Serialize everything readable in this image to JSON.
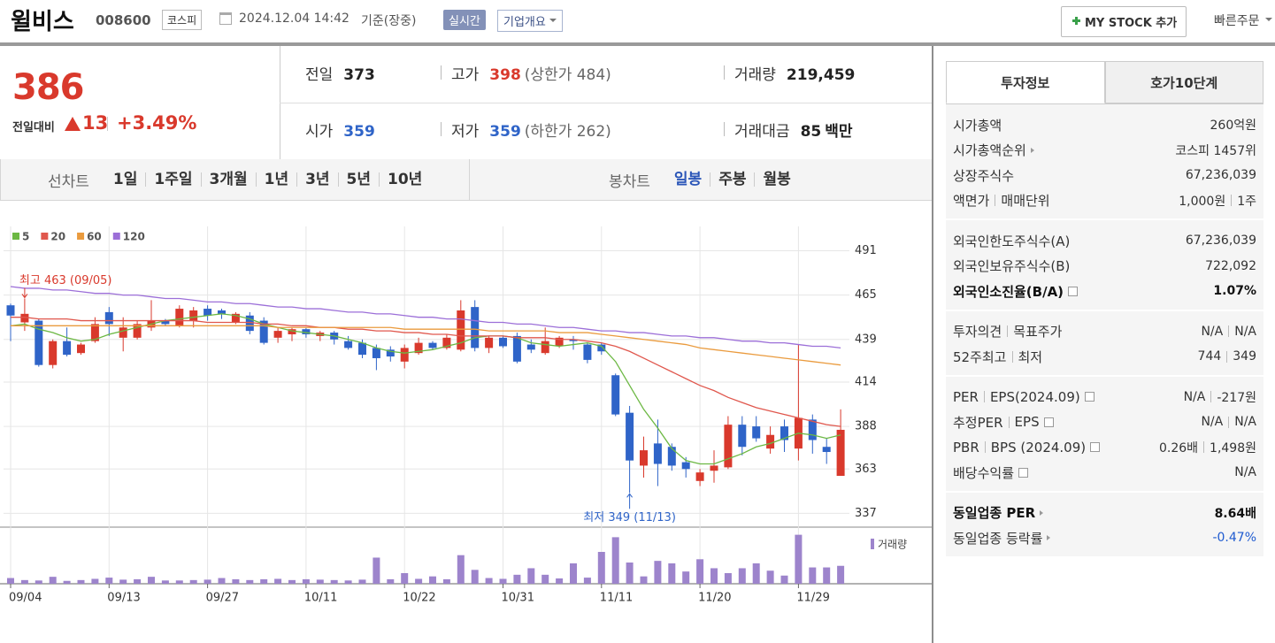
{
  "header": {
    "name": "윌비스",
    "code": "008600",
    "market": "코스피",
    "datetime": "2024.12.04 14:42",
    "basis": "기준(장중)",
    "realtime": "실시간",
    "company_info": "기업개요",
    "my_stock": "MY STOCK 추가",
    "quick_order": "빠른주문"
  },
  "quote": {
    "price": "386",
    "change_label": "전일대비",
    "change": "13",
    "change_rate": "+3.49%",
    "items": [
      {
        "label": "전일",
        "value": "373",
        "color": "#222222"
      },
      {
        "label": "고가",
        "value": "398",
        "note": "(상한가 484)",
        "color": "#d9392c"
      },
      {
        "label": "거래량",
        "value": "219,459",
        "color": "#222222"
      },
      {
        "label": "시가",
        "value": "359",
        "color": "#2f64c8"
      },
      {
        "label": "저가",
        "value": "359",
        "note": "(하한가 262)",
        "color": "#2f64c8"
      },
      {
        "label": "거래대금",
        "value": "85",
        "unit": "백만",
        "color": "#222222"
      }
    ]
  },
  "chart_tabs": {
    "line_label": "선차트",
    "line_periods": [
      "1일",
      "1주일",
      "3개월",
      "1년",
      "3년",
      "5년",
      "10년"
    ],
    "candle_label": "봉차트",
    "candle_periods": [
      "일봉",
      "주봉",
      "월봉"
    ],
    "active_candle": 0
  },
  "chart_data": {
    "type": "candlestick",
    "categories": [
      "09/04",
      null,
      null,
      null,
      null,
      null,
      null,
      "09/13",
      null,
      null,
      null,
      null,
      null,
      null,
      "09/27",
      null,
      null,
      null,
      null,
      null,
      null,
      "10/11",
      null,
      null,
      null,
      null,
      null,
      null,
      "10/22",
      null,
      null,
      null,
      null,
      null,
      null,
      "10/31",
      null,
      null,
      null,
      null,
      null,
      null,
      "11/11",
      null,
      null,
      null,
      null,
      null,
      null,
      "11/20",
      null,
      null,
      null,
      null,
      null,
      null,
      "11/29",
      null,
      null,
      null
    ],
    "ohlc": [
      [
        459,
        460,
        438,
        453
      ],
      [
        449,
        463,
        444,
        454
      ],
      [
        450,
        451,
        423,
        424
      ],
      [
        424,
        439,
        422,
        438
      ],
      [
        438,
        446,
        429,
        430
      ],
      [
        431,
        437,
        430,
        436
      ],
      [
        438,
        452,
        437,
        448
      ],
      [
        455,
        458,
        441,
        448
      ],
      [
        440,
        452,
        432,
        446
      ],
      [
        440,
        450,
        439,
        448
      ],
      [
        446,
        462,
        444,
        450
      ],
      [
        450,
        451,
        447,
        448
      ],
      [
        447,
        459,
        446,
        457
      ],
      [
        450,
        458,
        446,
        456
      ],
      [
        457,
        459,
        450,
        453
      ],
      [
        456,
        457,
        451,
        454
      ],
      [
        449,
        455,
        448,
        454
      ],
      [
        453,
        455,
        442,
        444
      ],
      [
        450,
        452,
        436,
        437
      ],
      [
        440,
        446,
        437,
        444
      ],
      [
        442,
        446,
        438,
        445
      ],
      [
        445,
        446,
        440,
        442
      ],
      [
        441,
        444,
        438,
        443
      ],
      [
        443,
        444,
        436,
        439
      ],
      [
        438,
        441,
        433,
        434
      ],
      [
        437,
        439,
        428,
        430
      ],
      [
        434,
        436,
        421,
        428
      ],
      [
        433,
        435,
        426,
        429
      ],
      [
        426,
        436,
        422,
        434
      ],
      [
        431,
        440,
        430,
        437
      ],
      [
        437,
        438,
        433,
        434
      ],
      [
        434,
        442,
        433,
        440
      ],
      [
        433,
        462,
        432,
        456
      ],
      [
        458,
        462,
        432,
        434
      ],
      [
        434,
        441,
        431,
        440
      ],
      [
        440,
        441,
        434,
        435
      ],
      [
        441,
        443,
        425,
        426
      ],
      [
        436,
        439,
        431,
        433
      ],
      [
        431,
        446,
        430,
        438
      ],
      [
        435,
        441,
        434,
        440
      ],
      [
        439,
        441,
        433,
        438
      ],
      [
        436,
        437,
        425,
        427
      ],
      [
        436,
        437,
        430,
        432
      ],
      [
        418,
        419,
        394,
        395
      ],
      [
        396,
        400,
        349,
        368
      ],
      [
        365,
        382,
        358,
        374
      ],
      [
        378,
        392,
        353,
        366
      ],
      [
        376,
        378,
        362,
        365
      ],
      [
        367,
        370,
        358,
        363
      ],
      [
        356,
        363,
        353,
        361
      ],
      [
        362,
        374,
        355,
        365
      ],
      [
        364,
        394,
        363,
        389
      ],
      [
        389,
        394,
        371,
        376
      ],
      [
        388,
        394,
        379,
        381
      ],
      [
        375,
        388,
        372,
        383
      ],
      [
        388,
        392,
        373,
        380
      ],
      [
        375,
        436,
        368,
        393
      ],
      [
        392,
        395,
        372,
        380
      ],
      [
        376,
        381,
        366,
        373
      ],
      [
        359,
        398,
        359,
        386
      ]
    ],
    "up_color": "#d9392c",
    "down_color": "#2f64c8",
    "ylim": [
      331,
      498
    ],
    "yticks": [
      337,
      363,
      388,
      414,
      439,
      465,
      491
    ],
    "grid": true,
    "series": [
      {
        "name": "5",
        "color": "#6cb843",
        "values": [
          447,
          448,
          445,
          443,
          440,
          438,
          439,
          442,
          444,
          446,
          448,
          450,
          451,
          452,
          453,
          454,
          453,
          451,
          448,
          446,
          444,
          443,
          442,
          441,
          439,
          437,
          434,
          432,
          431,
          432,
          433,
          435,
          437,
          440,
          441,
          441,
          440,
          437,
          436,
          435,
          436,
          437,
          435,
          426,
          412,
          398,
          387,
          375,
          368,
          366,
          366,
          369,
          372,
          376,
          378,
          381,
          384,
          383,
          381,
          383
        ]
      },
      {
        "name": "20",
        "color": "#e0574d",
        "values": [
          452,
          452,
          451,
          451,
          451,
          450,
          450,
          450,
          450,
          450,
          450,
          450,
          450,
          450,
          449,
          449,
          449,
          449,
          448,
          448,
          447,
          447,
          446,
          446,
          445,
          445,
          444,
          444,
          443,
          443,
          442,
          442,
          441,
          441,
          441,
          441,
          440,
          440,
          440,
          439,
          439,
          438,
          437,
          435,
          432,
          428,
          424,
          420,
          416,
          412,
          409,
          405,
          402,
          399,
          397,
          395,
          393,
          391,
          389,
          388
        ]
      },
      {
        "name": "60",
        "color": "#ea9b3e",
        "values": [
          447,
          447,
          447,
          447,
          447,
          447,
          447,
          447,
          447,
          447,
          447,
          447,
          447,
          447,
          447,
          447,
          447,
          447,
          447,
          446,
          446,
          446,
          446,
          446,
          446,
          446,
          446,
          446,
          445,
          445,
          445,
          445,
          445,
          445,
          444,
          444,
          444,
          444,
          444,
          443,
          443,
          443,
          442,
          441,
          440,
          439,
          438,
          437,
          436,
          434,
          433,
          432,
          431,
          430,
          429,
          428,
          427,
          426,
          425,
          424
        ]
      },
      {
        "name": "120",
        "color": "#9c6fd8",
        "values": [
          470,
          469,
          469,
          468,
          468,
          467,
          466,
          466,
          465,
          465,
          464,
          463,
          463,
          462,
          461,
          461,
          460,
          460,
          459,
          458,
          458,
          457,
          457,
          456,
          455,
          455,
          454,
          454,
          453,
          452,
          452,
          451,
          451,
          450,
          449,
          449,
          448,
          448,
          447,
          446,
          446,
          445,
          444,
          444,
          443,
          443,
          442,
          441,
          441,
          440,
          440,
          439,
          438,
          438,
          437,
          437,
          436,
          435,
          435,
          434
        ]
      }
    ],
    "high_label": "최고 463 (09/05)",
    "low_label": "최저 349 (11/13)",
    "volume": {
      "name": "거래량",
      "color": "#9d84cc",
      "ylim": [
        0,
        650000
      ],
      "values": [
        70000,
        45000,
        40000,
        85000,
        35000,
        45000,
        60000,
        75000,
        50000,
        55000,
        85000,
        40000,
        40000,
        45000,
        50000,
        70000,
        55000,
        45000,
        55000,
        60000,
        45000,
        55000,
        50000,
        45000,
        40000,
        50000,
        320000,
        55000,
        130000,
        60000,
        90000,
        55000,
        350000,
        170000,
        70000,
        60000,
        110000,
        190000,
        110000,
        65000,
        250000,
        75000,
        390000,
        570000,
        260000,
        90000,
        280000,
        250000,
        150000,
        300000,
        190000,
        130000,
        190000,
        250000,
        160000,
        100000,
        600000,
        200000,
        200000,
        219459
      ]
    }
  },
  "info_panel": {
    "tabs": [
      "투자정보",
      "호가10단계"
    ],
    "active_tab": 0,
    "sections": [
      {
        "rows": [
          {
            "label": [
              "시가총액"
            ],
            "value": [
              "260억원"
            ]
          },
          {
            "label": [
              "시가총액순위"
            ],
            "value": [
              "코스피 1457위"
            ],
            "arrow": true
          },
          {
            "label": [
              "상장주식수"
            ],
            "value": [
              "67,236,039"
            ]
          },
          {
            "label": [
              "액면가",
              "매매단위"
            ],
            "value": [
              "1,000원",
              "1주"
            ]
          }
        ]
      },
      {
        "rows": [
          {
            "label": [
              "외국인한도주식수(A)"
            ],
            "value": [
              "67,236,039"
            ]
          },
          {
            "label": [
              "외국인보유주식수(B)"
            ],
            "value": [
              "722,092"
            ]
          },
          {
            "label": [
              "외국인소진율(B/A)"
            ],
            "value": [
              "1.07%"
            ],
            "bold": true,
            "help": true
          }
        ]
      },
      {
        "rows": [
          {
            "label": [
              "투자의견",
              "목표주가"
            ],
            "value": [
              "N/A",
              "N/A"
            ]
          },
          {
            "label": [
              "52주최고",
              "최저"
            ],
            "value": [
              "744",
              "349"
            ]
          }
        ]
      },
      {
        "rows": [
          {
            "label": [
              "PER",
              "EPS(2024.09)"
            ],
            "value": [
              "N/A",
              "-217원"
            ],
            "help": true
          },
          {
            "label": [
              "추정PER",
              "EPS"
            ],
            "value": [
              "N/A",
              "N/A"
            ],
            "help": true
          },
          {
            "label": [
              "PBR",
              "BPS (2024.09)"
            ],
            "value": [
              "0.26배",
              "1,498원"
            ],
            "help": true
          },
          {
            "label": [
              "배당수익률"
            ],
            "value": [
              "N/A"
            ],
            "help": true
          }
        ]
      },
      {
        "rows": [
          {
            "label": [
              "동일업종 PER"
            ],
            "value": [
              "8.64배"
            ],
            "bold": true,
            "arrow": true
          },
          {
            "label": [
              "동일업종 등락률"
            ],
            "value": [
              "-0.47%"
            ],
            "arrow": true,
            "color": "#1f5bd0"
          }
        ]
      }
    ]
  }
}
